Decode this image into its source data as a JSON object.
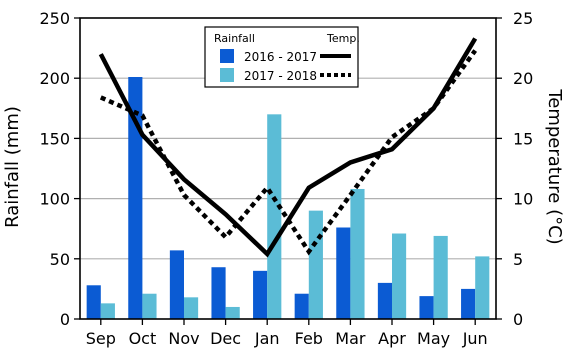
{
  "chart_data": {
    "type": "bar",
    "categories": [
      "Sep",
      "Oct",
      "Nov",
      "Dec",
      "Jan",
      "Feb",
      "Mar",
      "Apr",
      "May",
      "Jun"
    ],
    "bar_legend_title": "Rainfall",
    "line_legend_title": "Temp.",
    "ylabel_left": "Rainfall (mm)",
    "ylabel_right": "Temperature (°C)",
    "ylim_left": [
      0,
      250
    ],
    "ylim_right": [
      0,
      25
    ],
    "yticks_left": [
      "0",
      "50",
      "100",
      "150",
      "200",
      "250"
    ],
    "yticks_right": [
      "0",
      "5",
      "10",
      "15",
      "20",
      "25"
    ],
    "grid": true,
    "legend_position": "top-center",
    "bar_series": [
      {
        "name": "2016 - 2017",
        "color": "#0b5bd3",
        "values": [
          28,
          201,
          57,
          43,
          40,
          21,
          76,
          30,
          19,
          25
        ]
      },
      {
        "name": "2017 - 2018",
        "color": "#5bbcd6",
        "values": [
          13,
          21,
          18,
          10,
          170,
          90,
          108,
          71,
          69,
          52
        ]
      }
    ],
    "line_series": [
      {
        "name": "2016 - 2017",
        "color": "#000000",
        "style": "solid",
        "values": [
          22,
          15.3,
          11.6,
          8.7,
          5.4,
          10.9,
          13,
          14.1,
          17.5,
          23.3
        ]
      },
      {
        "name": "2017 - 2018",
        "color": "#000000",
        "style": "dotted",
        "values": [
          18.4,
          16.9,
          10.3,
          6.8,
          10.9,
          5.6,
          10.3,
          15.1,
          17.5,
          22.3
        ]
      }
    ]
  }
}
